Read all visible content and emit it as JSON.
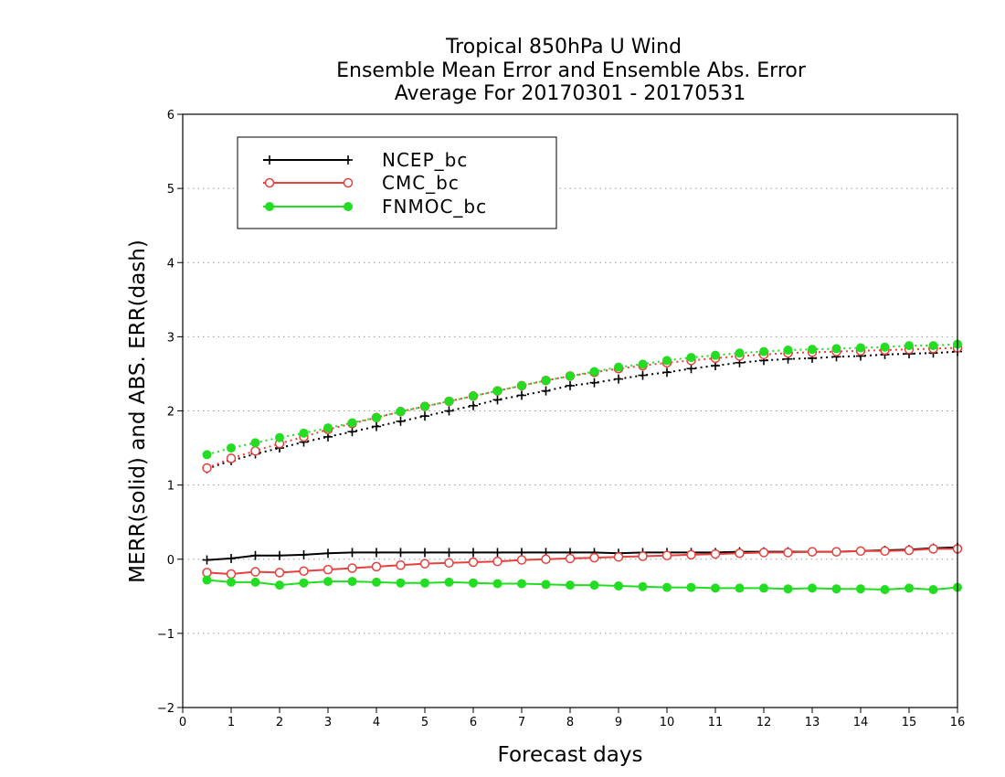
{
  "chart_data": {
    "type": "line",
    "title_lines": [
      "Tropical 850hPa U Wind",
      "Ensemble Mean Error and Ensemble Abs. Error",
      "Average For 20170301 - 20170531"
    ],
    "xlabel": "Forecast days",
    "ylabel": "MERR(solid) and ABS. ERR(dash)",
    "xlim": [
      0,
      16
    ],
    "ylim": [
      -2,
      6
    ],
    "x_ticks": [
      "0",
      "1",
      "2",
      "3",
      "4",
      "5",
      "6",
      "7",
      "8",
      "9",
      "10",
      "11",
      "12",
      "13",
      "14",
      "15",
      "16"
    ],
    "y_ticks": [
      "−2",
      "−1",
      "0",
      "1",
      "2",
      "3",
      "4",
      "5",
      "6"
    ],
    "grid": "horizontal dotted",
    "legend_position": "top-left",
    "x": [
      0.5,
      1,
      1.5,
      2,
      2.5,
      3,
      3.5,
      4,
      4.5,
      5,
      5.5,
      6,
      6.5,
      7,
      7.5,
      8,
      8.5,
      9,
      9.5,
      10,
      10.5,
      11,
      11.5,
      12,
      12.5,
      13,
      13.5,
      14,
      14.5,
      15,
      15.5,
      16
    ],
    "series": [
      {
        "name": "NCEP_bc",
        "color": "#000000",
        "marker": "plus",
        "merr": [
          -0.01,
          0.01,
          0.05,
          0.05,
          0.06,
          0.08,
          0.09,
          0.09,
          0.09,
          0.09,
          0.09,
          0.09,
          0.09,
          0.09,
          0.09,
          0.09,
          0.09,
          0.08,
          0.09,
          0.09,
          0.09,
          0.09,
          0.1,
          0.1,
          0.1,
          0.1,
          0.1,
          0.11,
          0.12,
          0.13,
          0.15,
          0.16
        ],
        "abs_err": [
          1.22,
          1.33,
          1.42,
          1.5,
          1.58,
          1.65,
          1.72,
          1.79,
          1.86,
          1.93,
          2.0,
          2.07,
          2.15,
          2.21,
          2.27,
          2.34,
          2.38,
          2.43,
          2.48,
          2.52,
          2.57,
          2.61,
          2.65,
          2.68,
          2.7,
          2.71,
          2.73,
          2.74,
          2.76,
          2.77,
          2.78,
          2.8
        ]
      },
      {
        "name": "CMC_bc",
        "color": "#e8403c",
        "marker": "open-circle",
        "merr": [
          -0.18,
          -0.2,
          -0.17,
          -0.18,
          -0.16,
          -0.14,
          -0.12,
          -0.1,
          -0.08,
          -0.06,
          -0.05,
          -0.04,
          -0.03,
          -0.01,
          0.0,
          0.01,
          0.02,
          0.03,
          0.04,
          0.05,
          0.06,
          0.07,
          0.08,
          0.09,
          0.09,
          0.1,
          0.1,
          0.11,
          0.11,
          0.12,
          0.14,
          0.14
        ],
        "abs_err": [
          1.23,
          1.36,
          1.46,
          1.56,
          1.65,
          1.75,
          1.83,
          1.91,
          1.99,
          2.06,
          2.13,
          2.2,
          2.27,
          2.34,
          2.41,
          2.47,
          2.52,
          2.57,
          2.61,
          2.65,
          2.68,
          2.71,
          2.74,
          2.76,
          2.78,
          2.79,
          2.8,
          2.81,
          2.82,
          2.83,
          2.84,
          2.85
        ]
      },
      {
        "name": "FNMOC_bc",
        "color": "#22dd22",
        "marker": "filled-circle",
        "merr": [
          -0.28,
          -0.31,
          -0.31,
          -0.35,
          -0.32,
          -0.3,
          -0.3,
          -0.31,
          -0.32,
          -0.32,
          -0.31,
          -0.32,
          -0.33,
          -0.33,
          -0.34,
          -0.35,
          -0.35,
          -0.36,
          -0.37,
          -0.38,
          -0.38,
          -0.39,
          -0.39,
          -0.39,
          -0.4,
          -0.39,
          -0.4,
          -0.4,
          -0.41,
          -0.39,
          -0.41,
          -0.38
        ],
        "abs_err": [
          1.41,
          1.5,
          1.57,
          1.64,
          1.7,
          1.77,
          1.84,
          1.91,
          1.99,
          2.06,
          2.13,
          2.2,
          2.27,
          2.34,
          2.41,
          2.47,
          2.53,
          2.59,
          2.63,
          2.68,
          2.72,
          2.75,
          2.78,
          2.8,
          2.82,
          2.83,
          2.84,
          2.85,
          2.86,
          2.88,
          2.88,
          2.9
        ]
      }
    ]
  }
}
